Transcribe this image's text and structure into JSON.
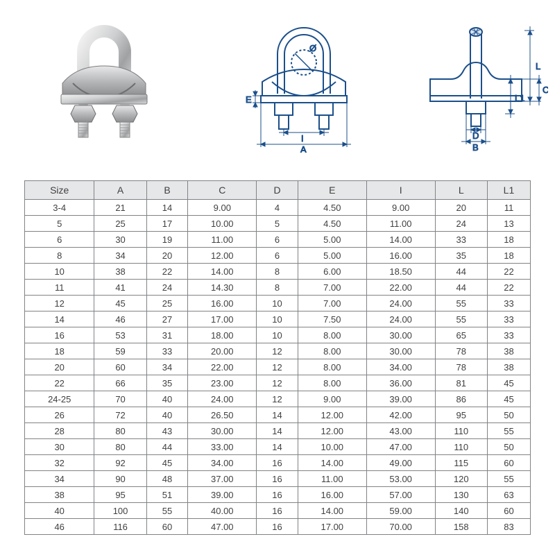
{
  "diagram_labels": {
    "front": {
      "A": "A",
      "I": "I",
      "E": "E",
      "diameter": "Ø"
    },
    "side": {
      "L": "L",
      "L1": "L1",
      "C": "C",
      "B": "B",
      "D": "D"
    }
  },
  "table": {
    "header_bg": "#e6e7e8",
    "border_color": "#808285",
    "text_color": "#414042",
    "columns": [
      "Size",
      "A",
      "B",
      "C",
      "D",
      "E",
      "I",
      "L",
      "L1"
    ],
    "rows": [
      [
        "3-4",
        "21",
        "14",
        "9.00",
        "4",
        "4.50",
        "9.00",
        "20",
        "11"
      ],
      [
        "5",
        "25",
        "17",
        "10.00",
        "5",
        "4.50",
        "11.00",
        "24",
        "13"
      ],
      [
        "6",
        "30",
        "19",
        "11.00",
        "6",
        "5.00",
        "14.00",
        "33",
        "18"
      ],
      [
        "8",
        "34",
        "20",
        "12.00",
        "6",
        "5.00",
        "16.00",
        "35",
        "18"
      ],
      [
        "10",
        "38",
        "22",
        "14.00",
        "8",
        "6.00",
        "18.50",
        "44",
        "22"
      ],
      [
        "11",
        "41",
        "24",
        "14.30",
        "8",
        "7.00",
        "22.00",
        "44",
        "22"
      ],
      [
        "12",
        "45",
        "25",
        "16.00",
        "10",
        "7.00",
        "24.00",
        "55",
        "33"
      ],
      [
        "14",
        "46",
        "27",
        "17.00",
        "10",
        "7.50",
        "24.00",
        "55",
        "33"
      ],
      [
        "16",
        "53",
        "31",
        "18.00",
        "10",
        "8.00",
        "30.00",
        "65",
        "33"
      ],
      [
        "18",
        "59",
        "33",
        "20.00",
        "12",
        "8.00",
        "30.00",
        "78",
        "38"
      ],
      [
        "20",
        "60",
        "34",
        "22.00",
        "12",
        "8.00",
        "34.00",
        "78",
        "38"
      ],
      [
        "22",
        "66",
        "35",
        "23.00",
        "12",
        "8.00",
        "36.00",
        "81",
        "45"
      ],
      [
        "24-25",
        "70",
        "40",
        "24.00",
        "12",
        "9.00",
        "39.00",
        "86",
        "45"
      ],
      [
        "26",
        "72",
        "40",
        "26.50",
        "14",
        "12.00",
        "42.00",
        "95",
        "50"
      ],
      [
        "28",
        "80",
        "43",
        "30.00",
        "14",
        "12.00",
        "43.00",
        "110",
        "55"
      ],
      [
        "30",
        "80",
        "44",
        "33.00",
        "14",
        "10.00",
        "47.00",
        "110",
        "50"
      ],
      [
        "32",
        "92",
        "45",
        "34.00",
        "16",
        "14.00",
        "49.00",
        "115",
        "60"
      ],
      [
        "34",
        "90",
        "48",
        "37.00",
        "16",
        "11.00",
        "53.00",
        "120",
        "55"
      ],
      [
        "38",
        "95",
        "51",
        "39.00",
        "16",
        "16.00",
        "57.00",
        "130",
        "63"
      ],
      [
        "40",
        "100",
        "55",
        "40.00",
        "16",
        "14.00",
        "59.00",
        "140",
        "60"
      ],
      [
        "46",
        "116",
        "60",
        "47.00",
        "16",
        "17.00",
        "70.00",
        "158",
        "83"
      ]
    ]
  }
}
